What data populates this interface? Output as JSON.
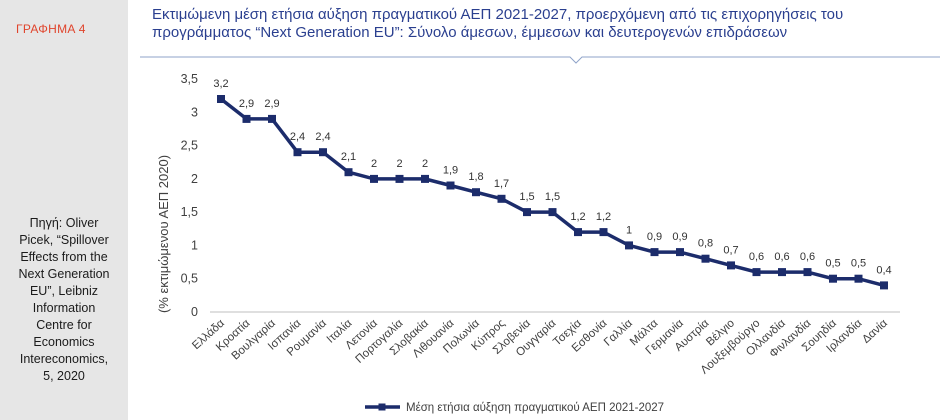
{
  "sidebar": {
    "figure_label": "ΓΡΑΦΗΜΑ 4",
    "source": "Πηγή: Oliver\nPicek, “Spillover\nEffects from the\nNext Generation\nEU”, Leibniz\nInformation\nCentre for\nEconomics\nIntereconomics,\n5, 2020"
  },
  "colors": {
    "series": "#1c2c6b",
    "sidebar_bg": "#e6e6e6",
    "figure_label": "#e0442c",
    "title": "#2a3f8f"
  },
  "chart_data": {
    "type": "line",
    "title": "Εκτιμώμενη μέση ετήσια αύξηση πραγματικού ΑΕΠ 2021-2027, προερχόμενη από τις επιχορηγήσεις του\nπρογράμματος “Next Generation EU”: Σύνολο άμεσων, έμμεσων και δευτερογενών επιδράσεων",
    "ylabel": "(% εκτιμώμενου ΑΕΠ 2020)",
    "xlabel": "",
    "ylim": [
      0,
      3.5
    ],
    "yticks": [
      0,
      0.5,
      1,
      1.5,
      2,
      2.5,
      3,
      3.5
    ],
    "ytick_labels": [
      "0",
      "0,5",
      "1",
      "1,5",
      "2",
      "2,5",
      "3",
      "3,5"
    ],
    "grid": false,
    "legend_position": "bottom",
    "categories": [
      "Ελλάδα",
      "Κροατία",
      "Βουλγαρία",
      "Ισπανία",
      "Ρουμανία",
      "Ιταλία",
      "Λετονία",
      "Πορτογαλία",
      "Σλοβακία",
      "Λιθουανία",
      "Πολωνία",
      "Κύπρος",
      "Σλοβενία",
      "Ουγγαρία",
      "Τσεχία",
      "Εσθονία",
      "Γαλλία",
      "Μάλτα",
      "Γερμανία",
      "Αυστρία",
      "Βέλγιο",
      "Λουξεμβούργο",
      "Ολλανδία",
      "Φινλανδία",
      "Σουηδία",
      "Ιρλανδία",
      "Δανία"
    ],
    "series": [
      {
        "name": "Μέση ετήσια αύξηση πραγματικού ΑΕΠ 2021-2027",
        "values": [
          3.2,
          2.9,
          2.9,
          2.4,
          2.4,
          2.1,
          2,
          2,
          2,
          1.9,
          1.8,
          1.7,
          1.5,
          1.5,
          1.2,
          1.2,
          1,
          0.9,
          0.9,
          0.8,
          0.7,
          0.6,
          0.6,
          0.6,
          0.5,
          0.5,
          0.4
        ],
        "labels": [
          "3,2",
          "2,9",
          "2,9",
          "2,4",
          "2,4",
          "2,1",
          "2",
          "2",
          "2",
          "1,9",
          "1,8",
          "1,7",
          "1,5",
          "1,5",
          "1,2",
          "1,2",
          "1",
          "0,9",
          "0,9",
          "0,8",
          "0,7",
          "0,6",
          "0,6",
          "0,6",
          "0,5",
          "0,5",
          "0,4"
        ]
      }
    ]
  }
}
